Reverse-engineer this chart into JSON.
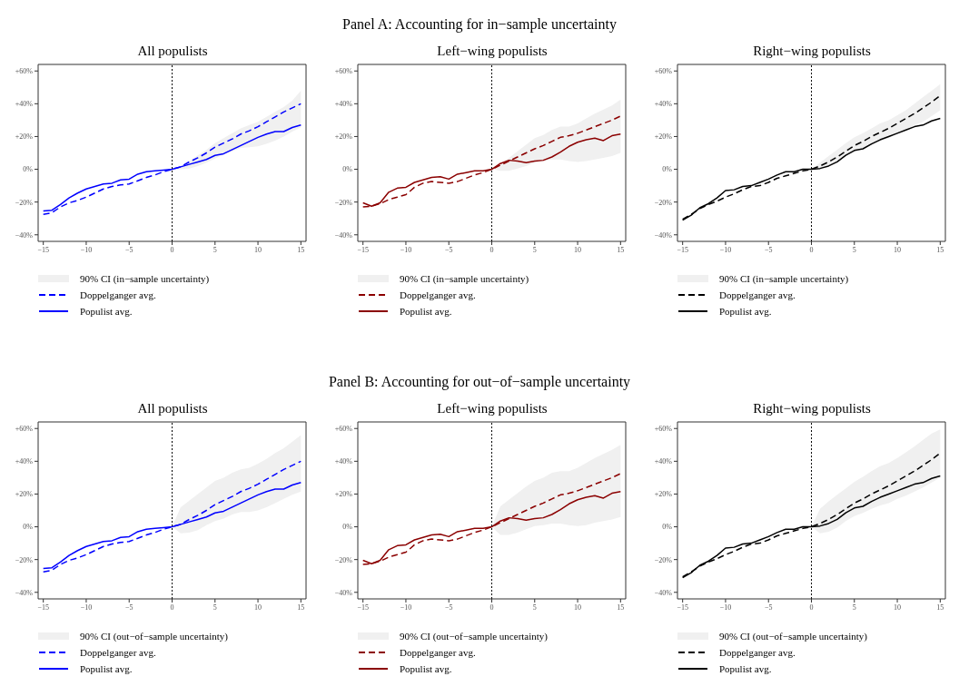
{
  "chart_data": [
    {
      "type": "line",
      "title": "All populists",
      "annotations": [
        "Panel A: Accounting for in−sample uncertainty"
      ],
      "x": [
        -15,
        -14,
        -13,
        -12,
        -11,
        -10,
        -9,
        -8,
        -7,
        -6,
        -5,
        -4,
        -3,
        -2,
        -1,
        0,
        1,
        2,
        3,
        4,
        5,
        6,
        7,
        8,
        9,
        10,
        11,
        12,
        13,
        14,
        15
      ],
      "xlim": [
        -15.6,
        15.6
      ],
      "xticks": [
        {
          "value": -15,
          "label": "−15"
        },
        {
          "value": -10,
          "label": "−10"
        },
        {
          "value": -5,
          "label": "−5"
        },
        0,
        5,
        10,
        15
      ],
      "ylim": [
        -44,
        64
      ],
      "yticks": [
        {
          "value": -40,
          "label": "−40%"
        },
        {
          "value": -20,
          "label": "−20%"
        },
        {
          "value": 0,
          "label": "0%"
        },
        {
          "value": 20,
          "label": "+20%"
        },
        {
          "value": 40,
          "label": "+40%"
        },
        {
          "value": 60,
          "label": "+60%"
        }
      ],
      "legend": "bottom",
      "ref_lines": [
        {
          "axis": "x",
          "value": 0,
          "line_style": "dotted",
          "color": "#000000"
        }
      ],
      "series": [
        {
          "name": "90% CI (in−sample uncertainty)",
          "type": "area",
          "color": "#f0f0f0",
          "values": [
            null,
            null,
            null,
            null,
            null,
            null,
            null,
            null,
            null,
            null,
            null,
            null,
            null,
            null,
            null,
            null,
            null,
            null,
            null,
            null,
            null,
            null,
            null,
            null,
            null,
            null,
            null,
            null,
            null,
            null,
            null
          ],
          "lower": [
            null,
            null,
            null,
            null,
            null,
            null,
            null,
            null,
            null,
            null,
            null,
            null,
            null,
            null,
            null,
            0,
            0,
            0.5,
            2,
            4,
            6.5,
            9,
            11,
            13,
            13.5,
            14,
            15.5,
            17.5,
            20,
            23,
            25.5
          ],
          "upper": [
            null,
            null,
            null,
            null,
            null,
            null,
            null,
            null,
            null,
            null,
            null,
            null,
            null,
            null,
            null,
            0,
            2,
            5,
            8.5,
            12,
            16,
            19,
            22,
            25,
            27,
            29,
            32,
            35,
            38,
            42,
            48
          ]
        },
        {
          "name": "Doppelganger avg.",
          "color": "#0000ff",
          "line_style": "dashed",
          "values": [
            -27.5,
            -26.5,
            -23,
            -20.5,
            -19,
            -17,
            -14.5,
            -12,
            -10.5,
            -9.5,
            -9,
            -7,
            -5,
            -3.5,
            -1.5,
            0,
            1.5,
            4.5,
            7,
            10,
            13.5,
            16,
            18.5,
            21.5,
            23.5,
            26,
            29,
            32,
            35,
            37.5,
            40
          ]
        },
        {
          "name": "Populist avg.",
          "color": "#0000ff",
          "line_style": "solid",
          "values": [
            -25.5,
            -25,
            -21.5,
            -17.5,
            -14.5,
            -12,
            -10.5,
            -9,
            -8.5,
            -6.5,
            -6,
            -3,
            -1.5,
            -1,
            -0.5,
            0,
            1.5,
            3,
            4.5,
            6,
            8.5,
            9.5,
            12,
            14.5,
            17,
            19.5,
            21.5,
            23,
            23,
            25.5,
            27
          ]
        }
      ]
    },
    {
      "type": "line",
      "title": "Left−wing populists",
      "x": [
        -15,
        -14,
        -13,
        -12,
        -11,
        -10,
        -9,
        -8,
        -7,
        -6,
        -5,
        -4,
        -3,
        -2,
        -1,
        0,
        1,
        2,
        3,
        4,
        5,
        6,
        7,
        8,
        9,
        10,
        11,
        12,
        13,
        14,
        15
      ],
      "xlim": [
        -15.6,
        15.6
      ],
      "xticks": [
        {
          "value": -15,
          "label": "−15"
        },
        {
          "value": -10,
          "label": "−10"
        },
        {
          "value": -5,
          "label": "−5"
        },
        0,
        5,
        10,
        15
      ],
      "ylim": [
        -44,
        64
      ],
      "yticks": [
        {
          "value": -40,
          "label": "−40%"
        },
        {
          "value": -20,
          "label": "−20%"
        },
        {
          "value": 0,
          "label": "0%"
        },
        {
          "value": 20,
          "label": "+20%"
        },
        {
          "value": 40,
          "label": "+40%"
        },
        {
          "value": 60,
          "label": "+60%"
        }
      ],
      "legend": "bottom",
      "ref_lines": [
        {
          "axis": "x",
          "value": 0,
          "line_style": "dotted",
          "color": "#000000"
        }
      ],
      "series": [
        {
          "name": "90% CI (in−sample uncertainty)",
          "type": "area",
          "color": "#f0f0f0",
          "values": [
            null,
            null,
            null,
            null,
            null,
            null,
            null,
            null,
            null,
            null,
            null,
            null,
            null,
            null,
            null,
            null,
            null,
            null,
            null,
            null,
            null,
            null,
            null,
            null,
            null,
            null,
            null,
            null,
            null,
            null,
            null
          ],
          "lower": [
            null,
            null,
            null,
            null,
            null,
            null,
            null,
            null,
            null,
            null,
            null,
            null,
            null,
            null,
            null,
            0,
            -1,
            -1,
            0.5,
            2,
            4,
            5,
            6,
            6,
            5,
            4.5,
            5,
            6,
            7,
            8,
            10
          ],
          "upper": [
            null,
            null,
            null,
            null,
            null,
            null,
            null,
            null,
            null,
            null,
            null,
            null,
            null,
            null,
            null,
            0,
            3,
            7,
            11,
            15,
            19,
            21,
            24,
            26,
            26,
            28,
            31,
            34,
            36.5,
            39,
            42.5
          ]
        },
        {
          "name": "Doppelganger avg.",
          "color": "#8b0000",
          "line_style": "dashed",
          "values": [
            -23,
            -22.5,
            -21,
            -18.5,
            -17,
            -15.5,
            -11,
            -8.5,
            -7.5,
            -8,
            -8.5,
            -7.5,
            -5.5,
            -3.5,
            -2,
            0,
            2.5,
            5,
            7.5,
            10,
            12.5,
            14.5,
            17,
            19.5,
            20.5,
            22,
            24,
            26,
            28,
            30,
            32.5
          ]
        },
        {
          "name": "Populist avg.",
          "color": "#8b0000",
          "line_style": "solid",
          "values": [
            -20.5,
            -22.5,
            -20.5,
            -14,
            -11.5,
            -11,
            -8,
            -6.5,
            -5,
            -4.5,
            -6,
            -3,
            -2,
            -1,
            -1,
            0,
            3.5,
            5.5,
            5,
            4,
            5,
            5.5,
            7.5,
            10.5,
            14,
            16.5,
            18,
            19,
            17.5,
            20.5,
            21.5
          ]
        }
      ]
    },
    {
      "type": "line",
      "title": "Right−wing populists",
      "x": [
        -15,
        -14,
        -13,
        -12,
        -11,
        -10,
        -9,
        -8,
        -7,
        -6,
        -5,
        -4,
        -3,
        -2,
        -1,
        0,
        1,
        2,
        3,
        4,
        5,
        6,
        7,
        8,
        9,
        10,
        11,
        12,
        13,
        14,
        15
      ],
      "xlim": [
        -15.6,
        15.6
      ],
      "xticks": [
        {
          "value": -15,
          "label": "−15"
        },
        {
          "value": -10,
          "label": "−10"
        },
        {
          "value": -5,
          "label": "−5"
        },
        0,
        5,
        10,
        15
      ],
      "ylim": [
        -44,
        64
      ],
      "yticks": [
        {
          "value": -40,
          "label": "−40%"
        },
        {
          "value": -20,
          "label": "−20%"
        },
        {
          "value": 0,
          "label": "0%"
        },
        {
          "value": 20,
          "label": "+20%"
        },
        {
          "value": 40,
          "label": "+40%"
        },
        {
          "value": 60,
          "label": "+60%"
        }
      ],
      "legend": "bottom",
      "ref_lines": [
        {
          "axis": "x",
          "value": 0,
          "line_style": "dotted",
          "color": "#000000"
        }
      ],
      "series": [
        {
          "name": "90% CI (in−sample uncertainty)",
          "type": "area",
          "color": "#f0f0f0",
          "values": [
            null,
            null,
            null,
            null,
            null,
            null,
            null,
            null,
            null,
            null,
            null,
            null,
            null,
            null,
            null,
            null,
            null,
            null,
            null,
            null,
            null,
            null,
            null,
            null,
            null,
            null,
            null,
            null,
            null,
            null,
            null
          ],
          "lower": [
            null,
            null,
            null,
            null,
            null,
            null,
            null,
            null,
            null,
            null,
            null,
            null,
            null,
            null,
            null,
            0,
            0.5,
            2,
            4.5,
            8,
            10.5,
            12.5,
            15,
            17,
            19,
            22,
            24,
            27,
            29,
            32.5,
            36
          ],
          "upper": [
            null,
            null,
            null,
            null,
            null,
            null,
            null,
            null,
            null,
            null,
            null,
            null,
            null,
            null,
            null,
            0,
            4,
            8,
            12,
            16,
            19.5,
            22,
            25,
            28,
            30,
            33,
            36,
            40,
            44,
            48,
            52
          ]
        },
        {
          "name": "Doppelganger avg.",
          "color": "#000000",
          "line_style": "dashed",
          "values": [
            -30.5,
            -27.5,
            -24,
            -21.5,
            -19.5,
            -17,
            -15,
            -12.5,
            -10.5,
            -10,
            -8,
            -5.5,
            -4,
            -2.5,
            -1,
            0,
            2,
            4.5,
            7.5,
            11,
            14.5,
            17,
            20,
            22.5,
            25,
            28,
            31,
            34,
            37.5,
            41,
            45
          ]
        },
        {
          "name": "Populist avg.",
          "color": "#000000",
          "line_style": "solid",
          "values": [
            -31,
            -28,
            -23.5,
            -21,
            -17.5,
            -13,
            -12.5,
            -10.5,
            -10,
            -8,
            -6,
            -3.5,
            -1.5,
            -1.5,
            0,
            0,
            0.5,
            2,
            4.5,
            8.5,
            11.5,
            12.5,
            15.5,
            18,
            20,
            22,
            24,
            26,
            27,
            29.5,
            31
          ]
        }
      ]
    },
    {
      "type": "line",
      "title": "All populists",
      "annotations": [
        "Panel B: Accounting for out−of−sample uncertainty"
      ],
      "x": [
        -15,
        -14,
        -13,
        -12,
        -11,
        -10,
        -9,
        -8,
        -7,
        -6,
        -5,
        -4,
        -3,
        -2,
        -1,
        0,
        1,
        2,
        3,
        4,
        5,
        6,
        7,
        8,
        9,
        10,
        11,
        12,
        13,
        14,
        15
      ],
      "xlim": [
        -15.6,
        15.6
      ],
      "xticks": [
        {
          "value": -15,
          "label": "−15"
        },
        {
          "value": -10,
          "label": "−10"
        },
        {
          "value": -5,
          "label": "−5"
        },
        0,
        5,
        10,
        15
      ],
      "ylim": [
        -44,
        64
      ],
      "yticks": [
        {
          "value": -40,
          "label": "−40%"
        },
        {
          "value": -20,
          "label": "−20%"
        },
        {
          "value": 0,
          "label": "0%"
        },
        {
          "value": 20,
          "label": "+20%"
        },
        {
          "value": 40,
          "label": "+40%"
        },
        {
          "value": 60,
          "label": "+60%"
        }
      ],
      "legend": "bottom",
      "ref_lines": [
        {
          "axis": "x",
          "value": 0,
          "line_style": "dotted",
          "color": "#000000"
        }
      ],
      "series": [
        {
          "name": "90% CI (out−of−sample uncertainty)",
          "type": "area",
          "color": "#f0f0f0",
          "values": [
            null,
            null,
            null,
            null,
            null,
            null,
            null,
            null,
            null,
            null,
            null,
            null,
            null,
            null,
            null,
            null,
            null,
            null,
            null,
            null,
            null,
            null,
            null,
            null,
            null,
            null,
            null,
            null,
            null,
            null,
            null
          ],
          "lower": [
            null,
            null,
            null,
            null,
            null,
            null,
            null,
            null,
            null,
            null,
            null,
            null,
            null,
            null,
            null,
            0,
            -4,
            -3.5,
            -2,
            1,
            3.5,
            5,
            7.5,
            9,
            9,
            10,
            12,
            14.5,
            17,
            19.5,
            21.5
          ],
          "upper": [
            null,
            null,
            null,
            null,
            null,
            null,
            null,
            null,
            null,
            null,
            null,
            null,
            null,
            null,
            null,
            0,
            12,
            16,
            20,
            24,
            28,
            30,
            33,
            35,
            36,
            38.5,
            41.5,
            45,
            48,
            52,
            56
          ]
        },
        {
          "name": "Doppelganger avg.",
          "color": "#0000ff",
          "line_style": "dashed",
          "values": [
            -27.5,
            -26.5,
            -23,
            -20.5,
            -19,
            -17,
            -14.5,
            -12,
            -10.5,
            -9.5,
            -9,
            -7,
            -5,
            -3.5,
            -1.5,
            0,
            1.5,
            4.5,
            7,
            10,
            13.5,
            16,
            18.5,
            21.5,
            23.5,
            26,
            29,
            32,
            35,
            37.5,
            40
          ]
        },
        {
          "name": "Populist avg.",
          "color": "#0000ff",
          "line_style": "solid",
          "values": [
            -25.5,
            -25,
            -21.5,
            -17.5,
            -14.5,
            -12,
            -10.5,
            -9,
            -8.5,
            -6.5,
            -6,
            -3,
            -1.5,
            -1,
            -0.5,
            0,
            1.5,
            3,
            4.5,
            6,
            8.5,
            9.5,
            12,
            14.5,
            17,
            19.5,
            21.5,
            23,
            23,
            25.5,
            27
          ]
        }
      ]
    },
    {
      "type": "line",
      "title": "Left−wing populists",
      "x": [
        -15,
        -14,
        -13,
        -12,
        -11,
        -10,
        -9,
        -8,
        -7,
        -6,
        -5,
        -4,
        -3,
        -2,
        -1,
        0,
        1,
        2,
        3,
        4,
        5,
        6,
        7,
        8,
        9,
        10,
        11,
        12,
        13,
        14,
        15
      ],
      "xlim": [
        -15.6,
        15.6
      ],
      "xticks": [
        {
          "value": -15,
          "label": "−15"
        },
        {
          "value": -10,
          "label": "−10"
        },
        {
          "value": -5,
          "label": "−5"
        },
        0,
        5,
        10,
        15
      ],
      "ylim": [
        -44,
        64
      ],
      "yticks": [
        {
          "value": -40,
          "label": "−40%"
        },
        {
          "value": -20,
          "label": "−20%"
        },
        {
          "value": 0,
          "label": "0%"
        },
        {
          "value": 20,
          "label": "+20%"
        },
        {
          "value": 40,
          "label": "+40%"
        },
        {
          "value": 60,
          "label": "+60%"
        }
      ],
      "legend": "bottom",
      "ref_lines": [
        {
          "axis": "x",
          "value": 0,
          "line_style": "dotted",
          "color": "#000000"
        }
      ],
      "series": [
        {
          "name": "90% CI (out−of−sample uncertainty)",
          "type": "area",
          "color": "#f0f0f0",
          "values": [
            null,
            null,
            null,
            null,
            null,
            null,
            null,
            null,
            null,
            null,
            null,
            null,
            null,
            null,
            null,
            null,
            null,
            null,
            null,
            null,
            null,
            null,
            null,
            null,
            null,
            null,
            null,
            null,
            null,
            null,
            null
          ],
          "lower": [
            null,
            null,
            null,
            null,
            null,
            null,
            null,
            null,
            null,
            null,
            null,
            null,
            null,
            null,
            null,
            0,
            -5,
            -5,
            -3.5,
            -1.5,
            0.5,
            1,
            2,
            2,
            1,
            0.5,
            1,
            2.5,
            3.5,
            4.5,
            6
          ],
          "upper": [
            null,
            null,
            null,
            null,
            null,
            null,
            null,
            null,
            null,
            null,
            null,
            null,
            null,
            null,
            null,
            0,
            12.5,
            16.5,
            20.5,
            24.5,
            28,
            30,
            33,
            34,
            34,
            36,
            39,
            42,
            44.5,
            47,
            50
          ]
        },
        {
          "name": "Doppelganger avg.",
          "color": "#8b0000",
          "line_style": "dashed",
          "values": [
            -23,
            -22.5,
            -21,
            -18.5,
            -17,
            -15.5,
            -11,
            -8.5,
            -7.5,
            -8,
            -8.5,
            -7.5,
            -5.5,
            -3.5,
            -2,
            0,
            2.5,
            5,
            7.5,
            10,
            12.5,
            14.5,
            17,
            19.5,
            20.5,
            22,
            24,
            26,
            28,
            30,
            32.5
          ]
        },
        {
          "name": "Populist avg.",
          "color": "#8b0000",
          "line_style": "solid",
          "values": [
            -20.5,
            -22.5,
            -20.5,
            -14,
            -11.5,
            -11,
            -8,
            -6.5,
            -5,
            -4.5,
            -6,
            -3,
            -2,
            -1,
            -1,
            0,
            3.5,
            5.5,
            5,
            4,
            5,
            5.5,
            7.5,
            10.5,
            14,
            16.5,
            18,
            19,
            17.5,
            20.5,
            21.5
          ]
        }
      ]
    },
    {
      "type": "line",
      "title": "Right−wing populists",
      "x": [
        -15,
        -14,
        -13,
        -12,
        -11,
        -10,
        -9,
        -8,
        -7,
        -6,
        -5,
        -4,
        -3,
        -2,
        -1,
        0,
        1,
        2,
        3,
        4,
        5,
        6,
        7,
        8,
        9,
        10,
        11,
        12,
        13,
        14,
        15
      ],
      "xlim": [
        -15.6,
        15.6
      ],
      "xticks": [
        {
          "value": -15,
          "label": "−15"
        },
        {
          "value": -10,
          "label": "−10"
        },
        {
          "value": -5,
          "label": "−5"
        },
        0,
        5,
        10,
        15
      ],
      "ylim": [
        -44,
        64
      ],
      "yticks": [
        {
          "value": -40,
          "label": "−40%"
        },
        {
          "value": -20,
          "label": "−20%"
        },
        {
          "value": 0,
          "label": "0%"
        },
        {
          "value": 20,
          "label": "+20%"
        },
        {
          "value": 40,
          "label": "+40%"
        },
        {
          "value": 60,
          "label": "+60%"
        }
      ],
      "legend": "bottom",
      "ref_lines": [
        {
          "axis": "x",
          "value": 0,
          "line_style": "dotted",
          "color": "#000000"
        }
      ],
      "series": [
        {
          "name": "90% CI (out−of−sample uncertainty)",
          "type": "area",
          "color": "#f0f0f0",
          "values": [
            null,
            null,
            null,
            null,
            null,
            null,
            null,
            null,
            null,
            null,
            null,
            null,
            null,
            null,
            null,
            null,
            null,
            null,
            null,
            null,
            null,
            null,
            null,
            null,
            null,
            null,
            null,
            null,
            null,
            null,
            null
          ],
          "lower": [
            null,
            null,
            null,
            null,
            null,
            null,
            null,
            null,
            null,
            null,
            null,
            null,
            null,
            null,
            null,
            0,
            -4,
            -3,
            -0.5,
            3.5,
            6.5,
            8.5,
            11,
            13,
            14.5,
            17,
            19,
            21.5,
            24,
            27,
            30
          ],
          "upper": [
            null,
            null,
            null,
            null,
            null,
            null,
            null,
            null,
            null,
            null,
            null,
            null,
            null,
            null,
            null,
            0,
            11,
            15.5,
            19.5,
            23.5,
            27.5,
            30.5,
            34,
            37,
            39,
            42,
            45.5,
            49,
            53,
            57,
            59.5
          ]
        },
        {
          "name": "Doppelganger avg.",
          "color": "#000000",
          "line_style": "dashed",
          "values": [
            -30.5,
            -27.5,
            -24,
            -21.5,
            -19.5,
            -17,
            -15,
            -12.5,
            -10.5,
            -10,
            -8,
            -5.5,
            -4,
            -2.5,
            -1,
            0,
            2,
            4.5,
            7.5,
            11,
            14.5,
            17,
            20,
            22.5,
            25,
            28,
            31,
            34,
            37.5,
            41,
            45
          ]
        },
        {
          "name": "Populist avg.",
          "color": "#000000",
          "line_style": "solid",
          "values": [
            -31,
            -28,
            -23.5,
            -21,
            -17.5,
            -13,
            -12.5,
            -10.5,
            -10,
            -8,
            -6,
            -3.5,
            -1.5,
            -1.5,
            0,
            0,
            0.5,
            2,
            4.5,
            8.5,
            11.5,
            12.5,
            15.5,
            18,
            20,
            22,
            24,
            26,
            27,
            29.5,
            31
          ]
        }
      ]
    }
  ]
}
